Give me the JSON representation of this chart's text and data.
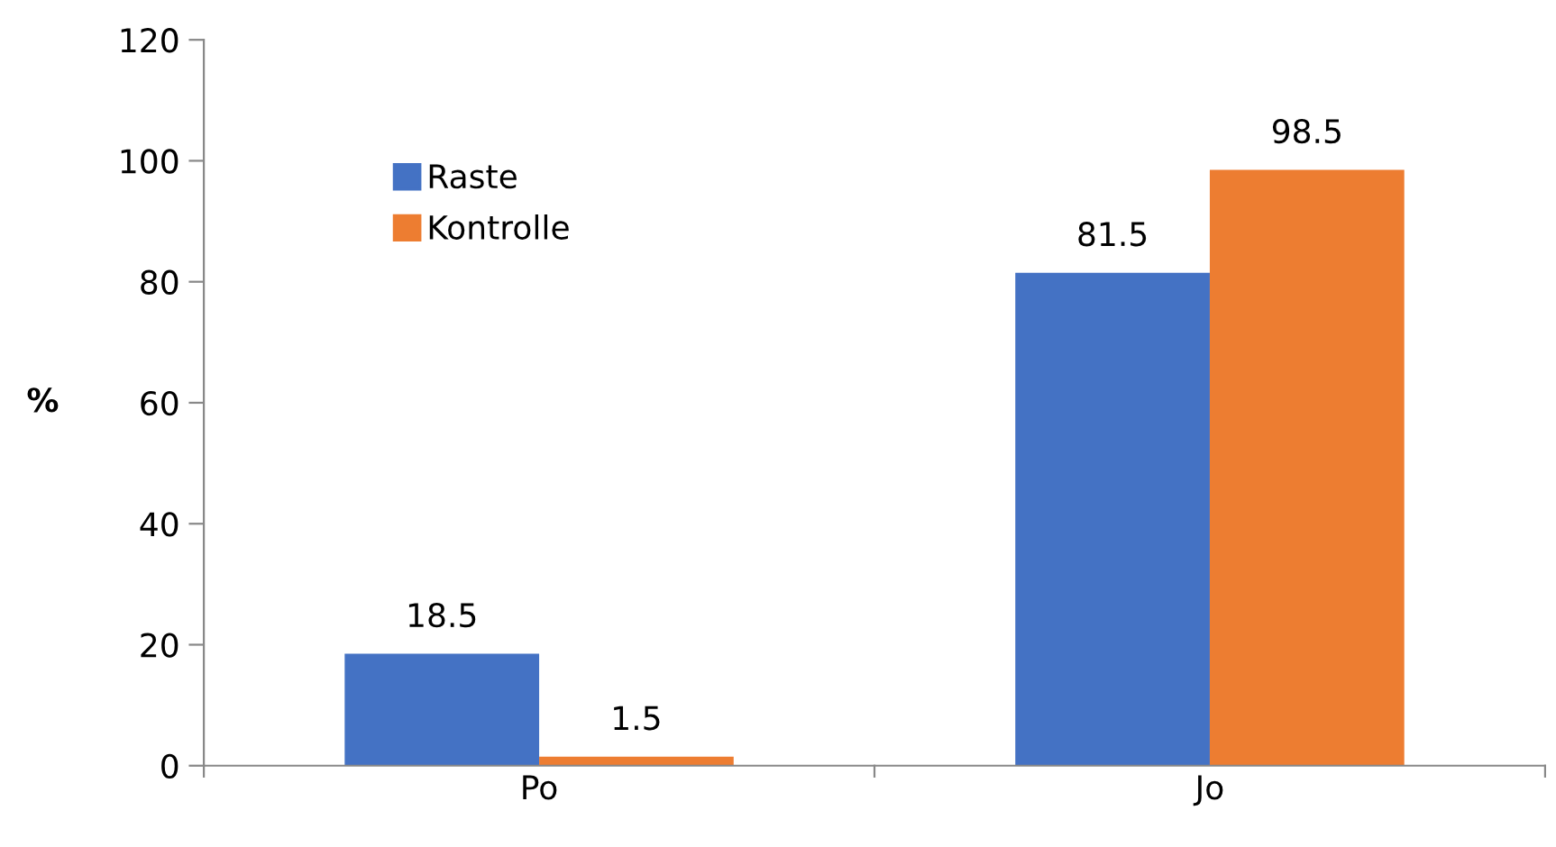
{
  "chart_data": {
    "type": "bar",
    "ylabel": "%",
    "categories": [
      "Po",
      "Jo"
    ],
    "series": [
      {
        "name": "Raste",
        "color": "#4472c4",
        "values": [
          18.5,
          81.5
        ]
      },
      {
        "name": "Kontrolle",
        "color": "#ed7d31",
        "values": [
          1.5,
          98.5
        ]
      }
    ],
    "ylim": [
      0,
      120
    ],
    "yticks": [
      0,
      20,
      40,
      60,
      80,
      100,
      120
    ],
    "data_labels": true,
    "legend": "top left",
    "grid": false
  }
}
